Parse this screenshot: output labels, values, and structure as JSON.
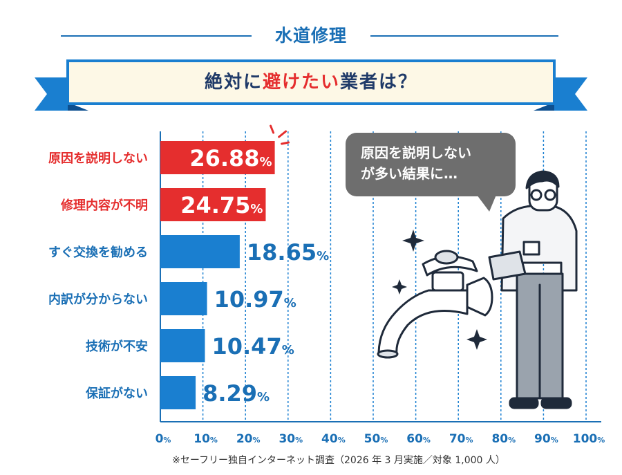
{
  "header": {
    "title": "水道修理",
    "banner_pre": "絶対に",
    "banner_highlight": "避けたい",
    "banner_post": "業者は？"
  },
  "speech_bubble": {
    "line1": "原因を説明しない",
    "line2": "が多い結果に…"
  },
  "footnote": "※セーフリー独自インターネット調査（2026 年 3 月実施／対象 1,000 人）",
  "colors": {
    "highlight_red": "#e52e2e",
    "bar_blue": "#1a7fd0",
    "label_blue": "#1a6fb5",
    "navy": "#1f3a68",
    "banner_fill": "#fdf8e6"
  },
  "chart_data": {
    "type": "bar",
    "orientation": "horizontal",
    "categories": [
      "原因を説明しない",
      "修理内容が不明",
      "すぐ交換を勧める",
      "内訳が分からない",
      "技術が不安",
      "保証がない"
    ],
    "values": [
      26.88,
      24.75,
      18.65,
      10.97,
      10.47,
      8.29
    ],
    "value_labels": [
      "26.88",
      "24.75",
      "18.65",
      "10.97",
      "10.47",
      "8.29"
    ],
    "value_unit": "%",
    "highlighted": [
      true,
      true,
      false,
      false,
      false,
      false
    ],
    "xlim": [
      0,
      100
    ],
    "xticks": [
      0,
      10,
      20,
      30,
      40,
      50,
      60,
      70,
      80,
      90,
      100
    ],
    "xtick_unit": "%",
    "grid": true
  }
}
